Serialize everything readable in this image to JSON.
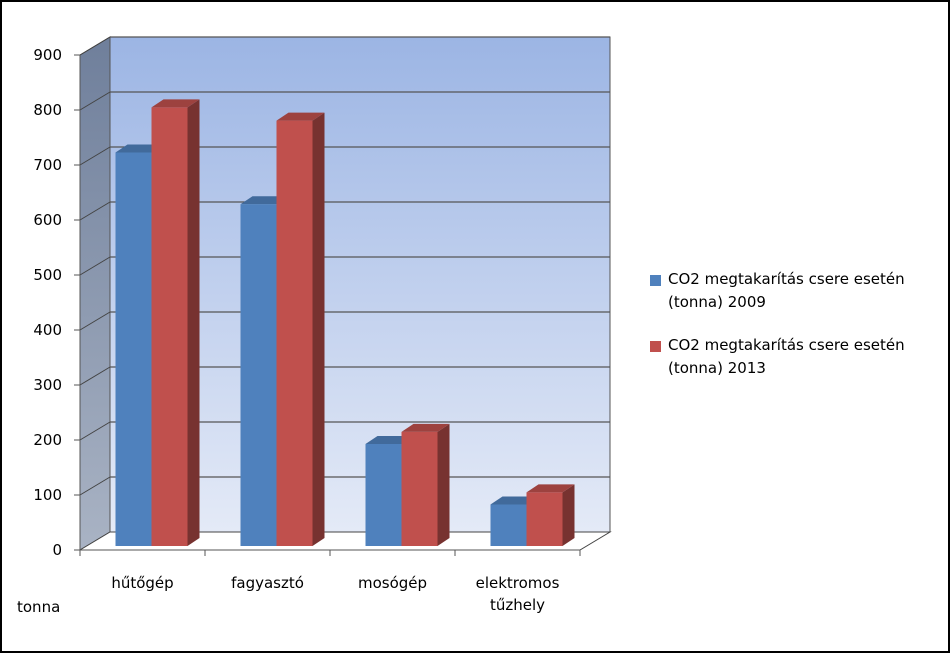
{
  "chart_data": {
    "type": "bar",
    "categories": [
      "hűtőgép",
      "fagyasztó",
      "mosógép",
      "elektromos tűzhely"
    ],
    "category_lines": [
      [
        "hűtőgép"
      ],
      [
        "fagyasztó"
      ],
      [
        "mosógép"
      ],
      [
        "elektromos",
        "tűzhely"
      ]
    ],
    "series": [
      {
        "name_lines": [
          "CO2 megtakarítás csere esetén",
          "(tonna) 2009"
        ],
        "values": [
          730,
          636,
          200,
          90
        ],
        "color": "#4f81bd"
      },
      {
        "name_lines": [
          "CO2 megtakarítás csere esetén",
          "(tonna) 2013"
        ],
        "values": [
          812,
          788,
          222,
          112
        ],
        "color": "#c0504d"
      }
    ],
    "ylabel": "tonna",
    "ylim": [
      0,
      900
    ],
    "yticks": [
      0,
      100,
      200,
      300,
      400,
      500,
      600,
      700,
      800,
      900
    ],
    "grid": true,
    "legend_position": "right",
    "style": "3d-clustered-column"
  }
}
